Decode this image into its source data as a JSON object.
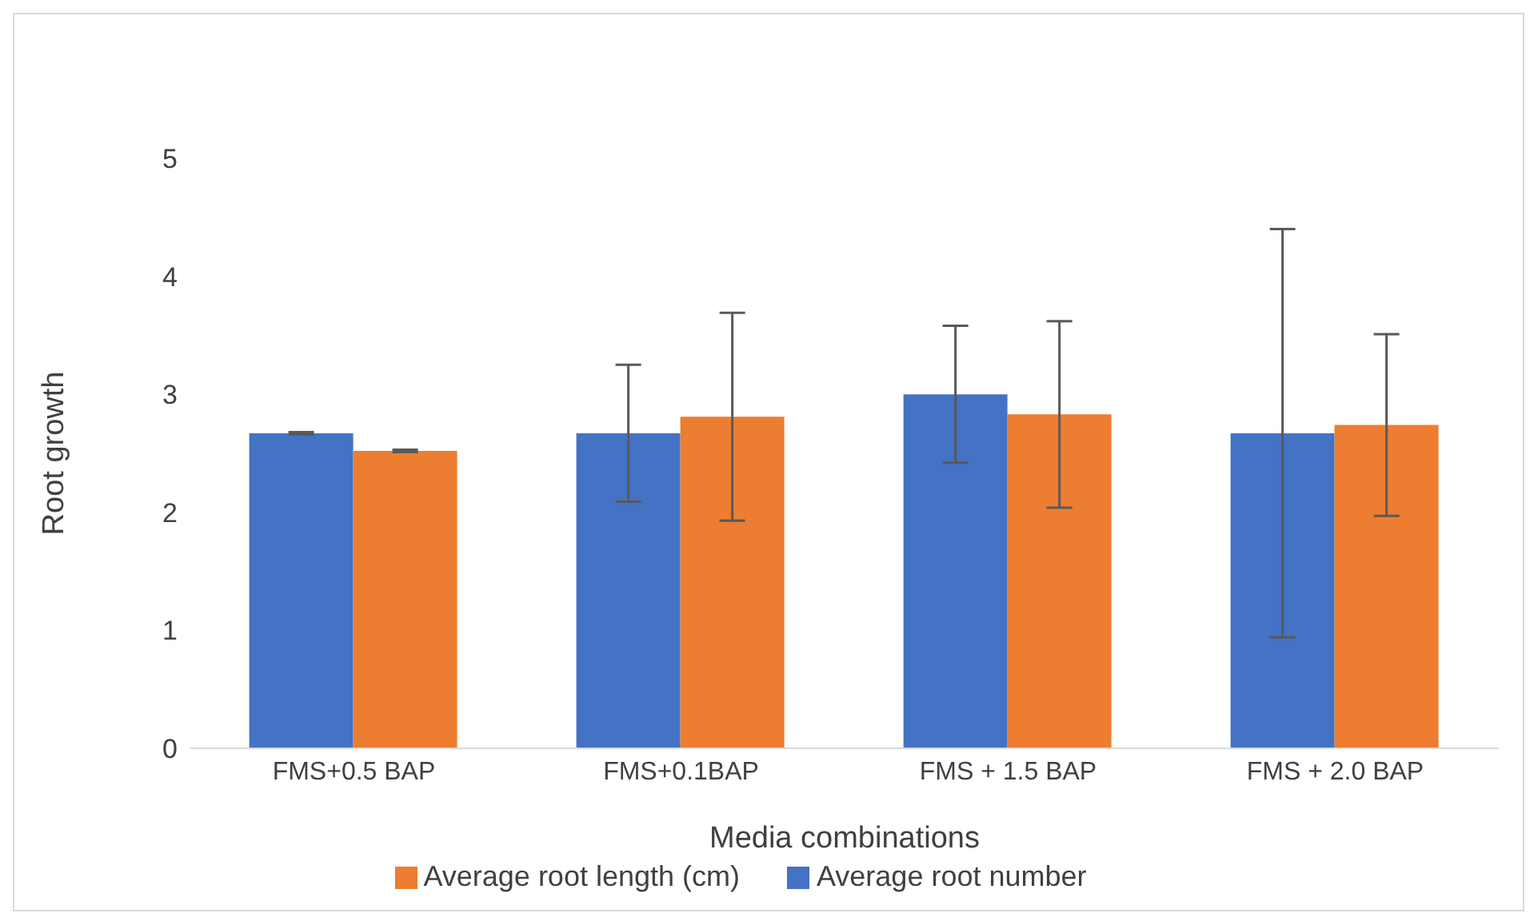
{
  "chart_data": {
    "type": "bar",
    "xlabel": "Media combinations",
    "ylabel": "Root growth",
    "categories": [
      "FMS+0.5 BAP",
      "FMS+0.1BAP",
      "FMS + 1.5 BAP",
      "FMS + 2.0 BAP"
    ],
    "series": [
      {
        "name": "Average root number",
        "color": "#4472c4",
        "values": [
          2.67,
          2.67,
          3.0,
          2.67
        ],
        "errors": [
          0.01,
          0.58,
          0.58,
          1.73
        ]
      },
      {
        "name": "Average root length (cm)",
        "color": "#ed7d31",
        "values": [
          2.52,
          2.81,
          2.83,
          2.74
        ],
        "errors": [
          0.01,
          0.88,
          0.79,
          0.77
        ]
      }
    ],
    "ylim": [
      0,
      5
    ],
    "yticks": [
      0,
      1,
      2,
      3,
      4,
      5
    ],
    "grid": false,
    "legend": "bottom"
  }
}
